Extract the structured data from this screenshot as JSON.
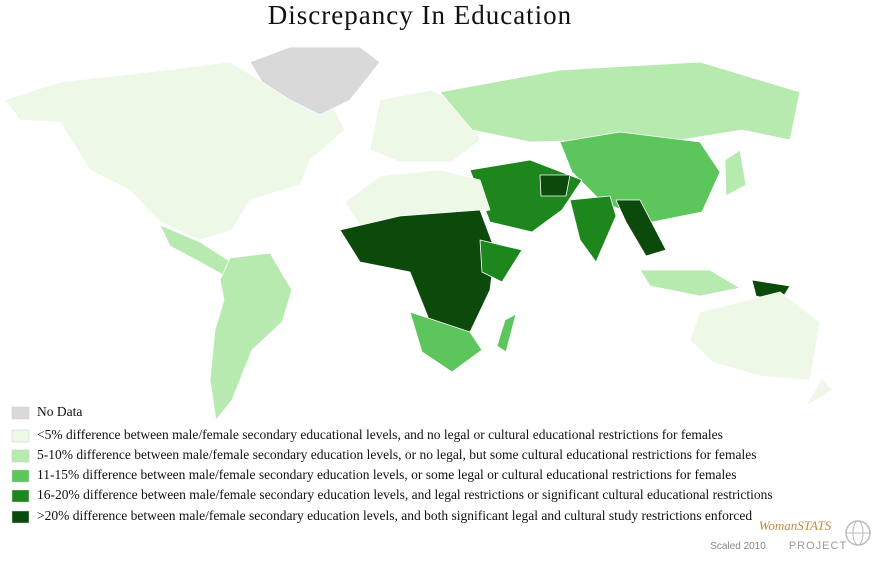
{
  "header": {
    "title": "Discrepancy In Education"
  },
  "legend": [
    {
      "label": "No Data",
      "color": "#d9d9d9"
    },
    {
      "label": "<5% difference between male/female secondary educational levels, and no legal or cultural educational restrictions for females",
      "color": "#edf8e6"
    },
    {
      "label": "5-10% difference between male/female secondary education levels, or no legal, but some cultural educational restrictions for females",
      "color": "#b6eaae"
    },
    {
      "label": "11-15% difference between male/female secondary education levels, or some legal or cultural educational restrictions for females",
      "color": "#5cc65c"
    },
    {
      "label": "16-20% difference between male/female secondary education levels, and legal restrictions or significant cultural educational restrictions",
      "color": "#1d861d"
    },
    {
      "label": ">20% difference between male/female secondary education levels, and both significant legal and cultural study restrictions enforced",
      "color": "#0c4a0c"
    }
  ],
  "footer": {
    "scale": "Scaled 2010",
    "brand": "WomanSTATS",
    "project": "PROJECT"
  }
}
